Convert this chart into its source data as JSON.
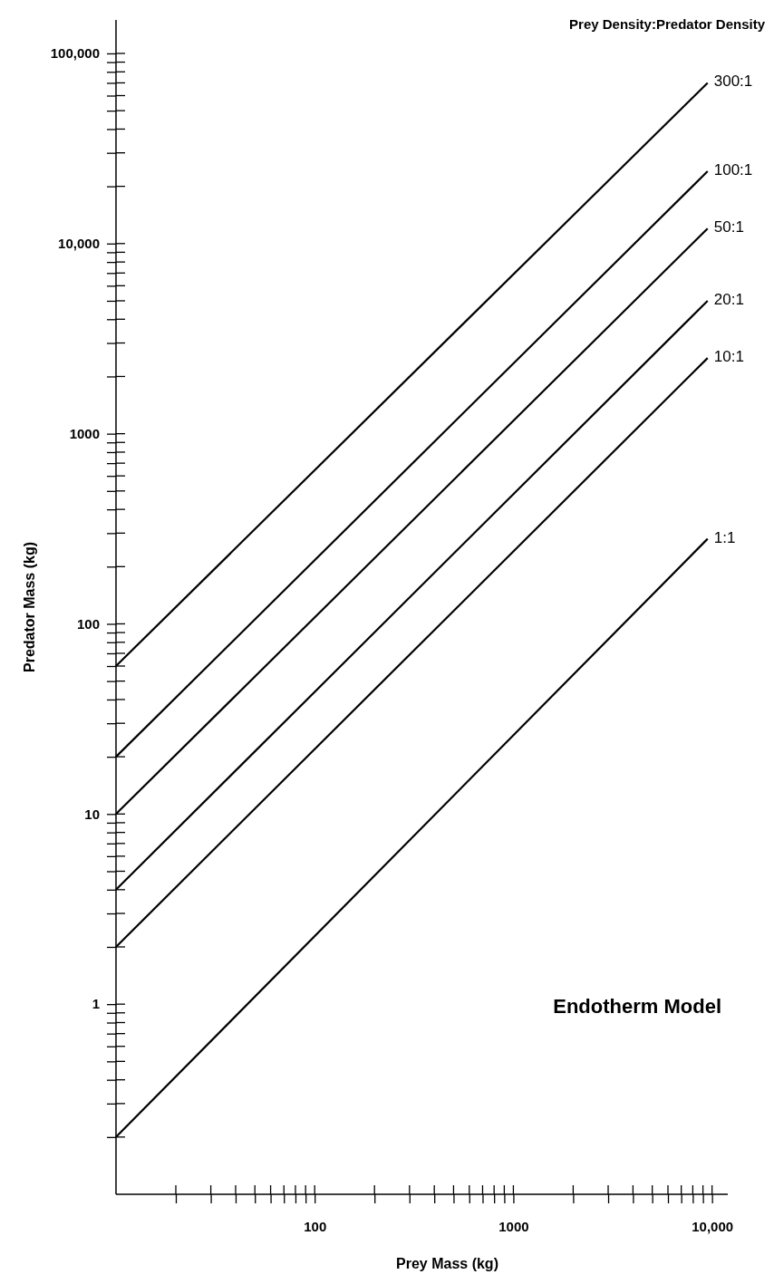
{
  "chart_data": {
    "type": "line",
    "legend_title": "Prey Density:Predator Density",
    "xlabel": "Prey Mass (kg)",
    "ylabel": "Predator Mass (kg)",
    "annotations": [
      "Endotherm Model"
    ],
    "log": "xy",
    "grid": false,
    "marker": "none",
    "line_style": "solid",
    "x": [
      10,
      9500
    ],
    "series": [
      {
        "name": "300:1",
        "color": "#000000",
        "values": [
          60,
          70000
        ]
      },
      {
        "name": "100:1",
        "color": "#000000",
        "values": [
          20,
          24000
        ]
      },
      {
        "name": "50:1",
        "color": "#000000",
        "values": [
          10,
          12000
        ]
      },
      {
        "name": "20:1",
        "color": "#000000",
        "values": [
          4,
          5000
        ]
      },
      {
        "name": "10:1",
        "color": "#000000",
        "values": [
          2,
          2500
        ]
      },
      {
        "name": "1:1",
        "color": "#000000",
        "values": [
          0.2,
          280
        ]
      }
    ],
    "xlim": [
      10,
      12000
    ],
    "ylim": [
      0.1,
      150000
    ],
    "xticks": [
      {
        "value": 20,
        "label": null
      },
      {
        "value": 30,
        "label": null
      },
      {
        "value": 40,
        "label": null
      },
      {
        "value": 50,
        "label": null
      },
      {
        "value": 60,
        "label": null
      },
      {
        "value": 70,
        "label": null
      },
      {
        "value": 80,
        "label": null
      },
      {
        "value": 90,
        "label": null
      },
      100,
      {
        "value": 200,
        "label": null
      },
      {
        "value": 300,
        "label": null
      },
      {
        "value": 400,
        "label": null
      },
      {
        "value": 500,
        "label": null
      },
      {
        "value": 600,
        "label": null
      },
      {
        "value": 700,
        "label": null
      },
      {
        "value": 800,
        "label": null
      },
      {
        "value": 900,
        "label": null
      },
      1000,
      {
        "value": 2000,
        "label": null
      },
      {
        "value": 3000,
        "label": null
      },
      {
        "value": 4000,
        "label": null
      },
      {
        "value": 5000,
        "label": null
      },
      {
        "value": 6000,
        "label": null
      },
      {
        "value": 7000,
        "label": null
      },
      {
        "value": 8000,
        "label": null
      },
      {
        "value": 9000,
        "label": null
      },
      {
        "value": 10000,
        "label": "10,000"
      }
    ],
    "yticks": [
      {
        "value": 0.2,
        "label": null
      },
      {
        "value": 0.3,
        "label": null
      },
      {
        "value": 0.4,
        "label": null
      },
      {
        "value": 0.5,
        "label": null
      },
      {
        "value": 0.6,
        "label": null
      },
      {
        "value": 0.7,
        "label": null
      },
      {
        "value": 0.8,
        "label": null
      },
      {
        "value": 0.9,
        "label": null
      },
      1,
      {
        "value": 2,
        "label": null
      },
      {
        "value": 3,
        "label": null
      },
      {
        "value": 4,
        "label": null
      },
      {
        "value": 5,
        "label": null
      },
      {
        "value": 6,
        "label": null
      },
      {
        "value": 7,
        "label": null
      },
      {
        "value": 8,
        "label": null
      },
      {
        "value": 9,
        "label": null
      },
      10,
      {
        "value": 20,
        "label": null
      },
      {
        "value": 30,
        "label": null
      },
      {
        "value": 40,
        "label": null
      },
      {
        "value": 50,
        "label": null
      },
      {
        "value": 60,
        "label": null
      },
      {
        "value": 70,
        "label": null
      },
      {
        "value": 80,
        "label": null
      },
      {
        "value": 90,
        "label": null
      },
      100,
      {
        "value": 200,
        "label": null
      },
      {
        "value": 300,
        "label": null
      },
      {
        "value": 400,
        "label": null
      },
      {
        "value": 500,
        "label": null
      },
      {
        "value": 600,
        "label": null
      },
      {
        "value": 700,
        "label": null
      },
      {
        "value": 800,
        "label": null
      },
      {
        "value": 900,
        "label": null
      },
      1000,
      {
        "value": 2000,
        "label": null
      },
      {
        "value": 3000,
        "label": null
      },
      {
        "value": 4000,
        "label": null
      },
      {
        "value": 5000,
        "label": null
      },
      {
        "value": 6000,
        "label": null
      },
      {
        "value": 7000,
        "label": null
      },
      {
        "value": 8000,
        "label": null
      },
      {
        "value": 9000,
        "label": null
      },
      {
        "value": 10000,
        "label": "10,000"
      },
      {
        "value": 20000,
        "label": null
      },
      {
        "value": 30000,
        "label": null
      },
      {
        "value": 40000,
        "label": null
      },
      {
        "value": 50000,
        "label": null
      },
      {
        "value": 60000,
        "label": null
      },
      {
        "value": 70000,
        "label": null
      },
      {
        "value": 80000,
        "label": null
      },
      {
        "value": 90000,
        "label": null
      },
      {
        "value": 100000,
        "label": "100,000"
      }
    ]
  }
}
